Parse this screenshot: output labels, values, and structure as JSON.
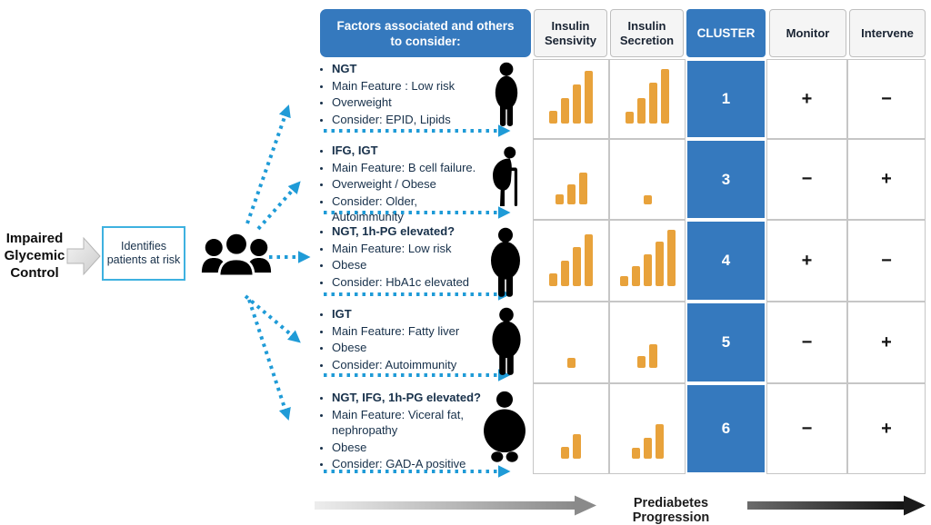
{
  "colors": {
    "table_blue": "#3579BE",
    "bar_orange": "#E8A23B",
    "arrow_blue": "#1F9BD7",
    "box_border_cyan": "#3EB1E0"
  },
  "left_flow": {
    "impaired_label": "Impaired Glycemic Control",
    "identify_box_label": "Identifies patients at risk",
    "flow_arrow_icon": "block-arrow-right",
    "patients_group_icon": "people-group"
  },
  "table": {
    "factors_header": "Factors associated and others to consider:",
    "columns": {
      "sensitivity": "Insulin Sensivity",
      "secretion": "Insulin Secretion",
      "cluster": "CLUSTER",
      "monitor": "Monitor",
      "intervene": "Intervene"
    },
    "rows": [
      {
        "bullets": [
          "NGT",
          "Main Feature : Low risk",
          "Overweight",
          "Consider: EPID, Lipids"
        ],
        "person_icon": "overweight-person",
        "sensitivity_bars": [
          14,
          28,
          43,
          58
        ],
        "secretion_bars": [
          13,
          28,
          45,
          60
        ],
        "cluster": "1",
        "monitor": "+",
        "intervene": "−"
      },
      {
        "bullets": [
          "IFG, IGT",
          "Main Feature: B cell failure.",
          "Overweight / Obese",
          "Consider: Older, Autoimmunity"
        ],
        "person_icon": "elderly-person-with-cane",
        "sensitivity_bars": [
          11,
          22,
          35
        ],
        "secretion_bars": [
          10
        ],
        "cluster": "3",
        "monitor": "−",
        "intervene": "+"
      },
      {
        "bullets": [
          "NGT, 1h-PG elevated?",
          "Main Feature: Low risk",
          "Obese",
          "Consider: HbA1c elevated"
        ],
        "person_icon": "obese-person",
        "sensitivity_bars": [
          14,
          28,
          43,
          57
        ],
        "secretion_bars": [
          11,
          22,
          35,
          49,
          62
        ],
        "cluster": "4",
        "monitor": "+",
        "intervene": "−"
      },
      {
        "bullets": [
          "IGT",
          "Main Feature: Fatty liver",
          "Obese",
          "Consider: Autoimmunity"
        ],
        "person_icon": "obese-person",
        "sensitivity_bars": [
          11
        ],
        "secretion_bars": [
          13,
          26
        ],
        "cluster": "5",
        "monitor": "−",
        "intervene": "+"
      },
      {
        "bullets": [
          "NGT, IFG, 1h-PG elevated?",
          "Main Feature: Viceral fat, nephropathy",
          "Obese",
          "Consider: GAD-A positive"
        ],
        "person_icon": "severely-obese-person",
        "sensitivity_bars": [
          13,
          27
        ],
        "secretion_bars": [
          12,
          23,
          38
        ],
        "cluster": "6",
        "monitor": "−",
        "intervene": "+"
      }
    ]
  },
  "footer": {
    "progression_label": "Prediabetes Progression"
  }
}
